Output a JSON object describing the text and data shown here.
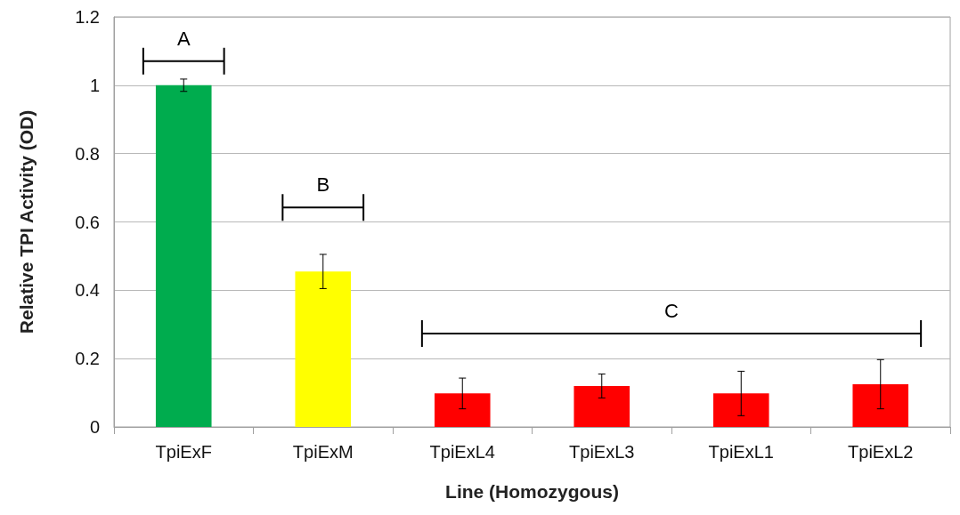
{
  "chart_data": {
    "type": "bar",
    "xlabel": "Line (Homozygous)",
    "ylabel": "Relative TPI Activity (OD)",
    "categories": [
      "TpiExF",
      "TpiExM",
      "TpiExL4",
      "TpiExL3",
      "TpiExL1",
      "TpiExL2"
    ],
    "values": [
      1.0,
      0.455,
      0.098,
      0.12,
      0.098,
      0.125
    ],
    "colors": [
      "#00ac4e",
      "#ffff00",
      "#ff0000",
      "#ff0000",
      "#ff0000",
      "#ff0000"
    ],
    "errors": [
      0.018,
      0.05,
      0.045,
      0.035,
      0.065,
      0.072
    ],
    "ylim": [
      0,
      1.2
    ],
    "yticks": [
      0,
      0.2,
      0.4,
      0.6,
      0.8,
      1,
      1.2
    ],
    "grid": "y",
    "annotations": [
      "A",
      "B",
      "C"
    ]
  }
}
